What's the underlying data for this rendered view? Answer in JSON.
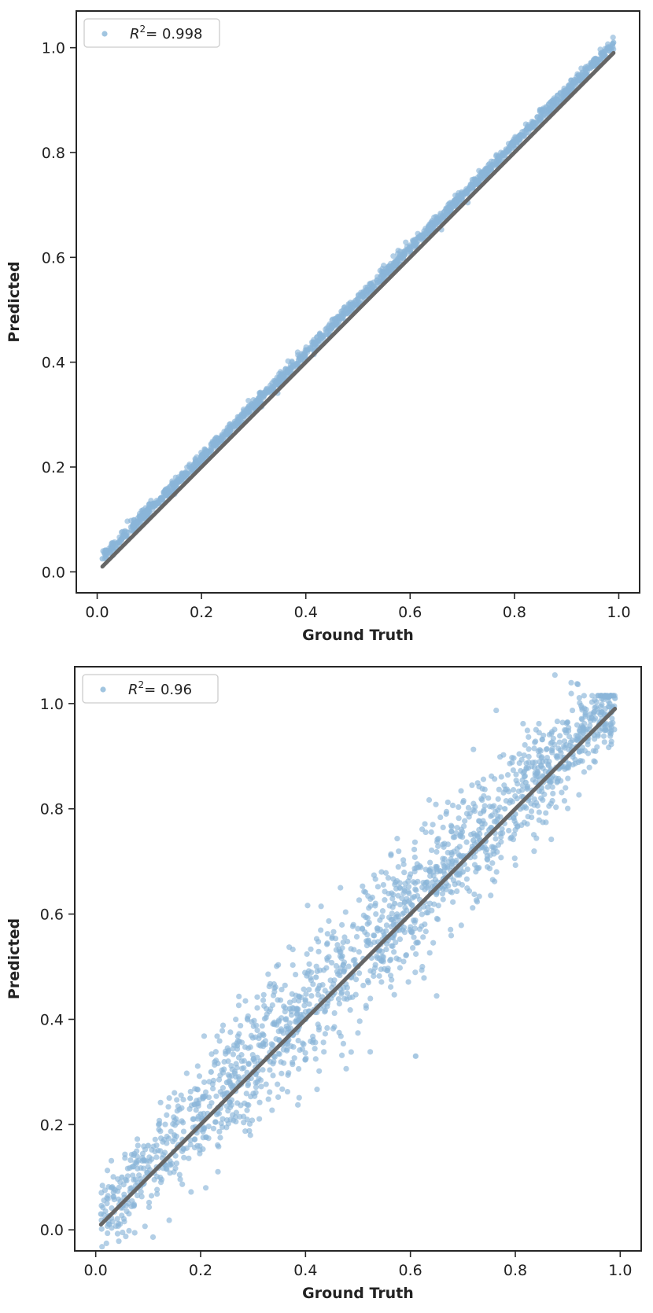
{
  "chart_data": [
    {
      "type": "scatter",
      "title": "",
      "xlabel": "Ground Truth",
      "ylabel": "Predicted",
      "xlim": [
        -0.04,
        1.04
      ],
      "ylim": [
        -0.04,
        1.07
      ],
      "xticks": [
        "0.0",
        "0.2",
        "0.4",
        "0.6",
        "0.8",
        "1.0"
      ],
      "yticks": [
        "0.0",
        "0.2",
        "0.4",
        "0.6",
        "0.8",
        "1.0"
      ],
      "grid": false,
      "legend_placement": "upper-left",
      "legend": {
        "symbol": "R",
        "superscript": "2",
        "suffix": "= 0.998"
      },
      "series": [
        {
          "name": "R2 = 0.998",
          "kind": "scatter",
          "color": "#8ab6d8",
          "note": "dense band of points lying along y ≈ 1.0*x + 0.02, very small spread (~0.005)",
          "x": [
            0.01,
            0.03,
            0.05,
            0.07,
            0.09,
            0.11,
            0.13,
            0.15,
            0.17,
            0.19,
            0.21,
            0.23,
            0.25,
            0.27,
            0.29,
            0.31,
            0.33,
            0.35,
            0.37,
            0.39,
            0.41,
            0.43,
            0.45,
            0.47,
            0.49,
            0.51,
            0.53,
            0.55,
            0.57,
            0.59,
            0.61,
            0.63,
            0.65,
            0.67,
            0.69,
            0.71,
            0.73,
            0.75,
            0.77,
            0.79,
            0.81,
            0.83,
            0.85,
            0.87,
            0.89,
            0.91,
            0.93,
            0.95,
            0.97,
            0.99
          ],
          "y": [
            0.025,
            0.045,
            0.065,
            0.085,
            0.105,
            0.125,
            0.145,
            0.165,
            0.185,
            0.205,
            0.225,
            0.245,
            0.265,
            0.285,
            0.305,
            0.325,
            0.345,
            0.365,
            0.385,
            0.405,
            0.425,
            0.445,
            0.465,
            0.485,
            0.505,
            0.525,
            0.545,
            0.565,
            0.585,
            0.605,
            0.625,
            0.645,
            0.665,
            0.685,
            0.705,
            0.725,
            0.745,
            0.765,
            0.785,
            0.805,
            0.825,
            0.845,
            0.865,
            0.885,
            0.905,
            0.925,
            0.945,
            0.965,
            0.985,
            1.01
          ]
        },
        {
          "name": "identity",
          "kind": "line",
          "color": "#666666",
          "x": [
            0.01,
            0.99
          ],
          "y": [
            0.01,
            0.99
          ]
        }
      ]
    },
    {
      "type": "scatter",
      "title": "",
      "xlabel": "Ground Truth",
      "ylabel": "Predicted",
      "xlim": [
        -0.04,
        1.04
      ],
      "ylim": [
        -0.04,
        1.07
      ],
      "xticks": [
        "0.0",
        "0.2",
        "0.4",
        "0.6",
        "0.8",
        "1.0"
      ],
      "yticks": [
        "0.0",
        "0.2",
        "0.4",
        "0.6",
        "0.8",
        "1.0"
      ],
      "grid": false,
      "legend_placement": "upper-left",
      "legend": {
        "symbol": "R",
        "superscript": "2",
        "suffix": "= 0.96"
      },
      "series": [
        {
          "name": "R2 = 0.96",
          "kind": "scatter",
          "color": "#8ab6d8",
          "note": "cloud of points around y ≈ x + 0.02 with spread ~0.05, wider in the middle",
          "x": [
            0.01,
            0.03,
            0.05,
            0.07,
            0.1,
            0.12,
            0.15,
            0.18,
            0.2,
            0.22,
            0.25,
            0.27,
            0.3,
            0.32,
            0.35,
            0.37,
            0.4,
            0.42,
            0.45,
            0.47,
            0.5,
            0.52,
            0.55,
            0.57,
            0.6,
            0.61,
            0.63,
            0.65,
            0.68,
            0.7,
            0.72,
            0.75,
            0.78,
            0.8,
            0.82,
            0.85,
            0.88,
            0.9,
            0.93,
            0.95,
            0.98,
            0.99
          ],
          "y": [
            0.03,
            0.08,
            0.1,
            0.12,
            0.16,
            0.2,
            0.18,
            0.25,
            0.22,
            0.3,
            0.28,
            0.35,
            0.3,
            0.37,
            0.36,
            0.42,
            0.4,
            0.48,
            0.45,
            0.52,
            0.5,
            0.55,
            0.56,
            0.62,
            0.6,
            0.33,
            0.66,
            0.64,
            0.7,
            0.68,
            0.74,
            0.76,
            0.8,
            0.79,
            0.85,
            0.84,
            0.9,
            0.88,
            0.95,
            0.94,
            1.0,
            1.01
          ]
        },
        {
          "name": "identity",
          "kind": "line",
          "color": "#666666",
          "x": [
            0.01,
            0.99
          ],
          "y": [
            0.01,
            0.99
          ]
        }
      ]
    }
  ]
}
